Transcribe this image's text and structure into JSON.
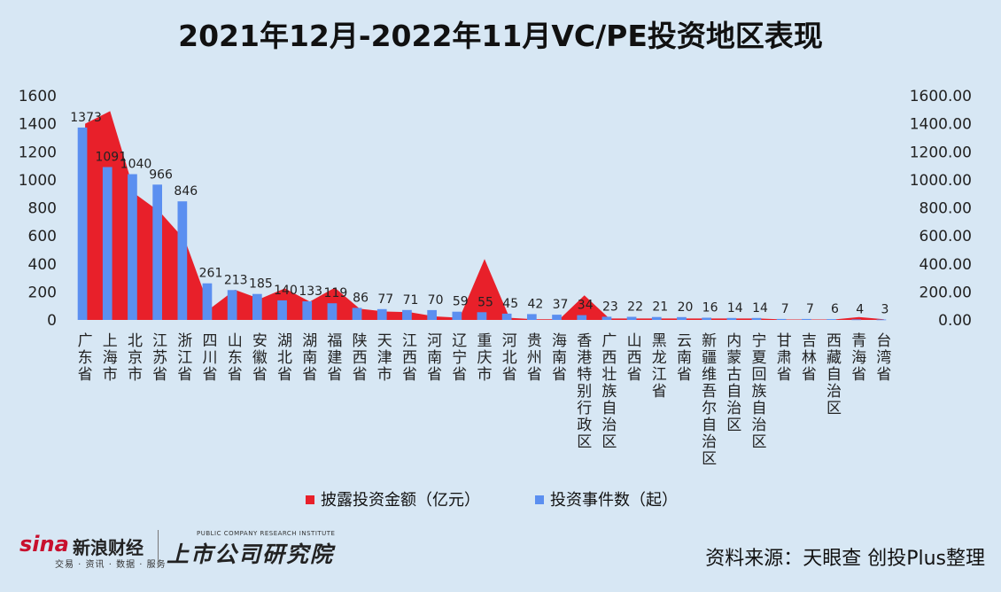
{
  "title": "2021年12月-2022年11月VC/PE投资地区表现",
  "source_note": "资料来源：天眼查 创投Plus整理",
  "logos": {
    "sina_word": "sina",
    "sina_cn": "新浪财经",
    "sina_sub": "交易 · 资讯 · 数据 · 服务",
    "institute_cn": "上市公司研究院",
    "institute_en": "PUBLIC COMPANY RESEARCH INSTITUTE"
  },
  "colors": {
    "area": "#e8202a",
    "bar": "#5b8ff0",
    "background": "#d7e7f4"
  },
  "chart_data": {
    "type": "bar",
    "title": "2021年12月-2022年11月VC/PE投资地区表现",
    "categories": [
      "广东省",
      "上海市",
      "北京市",
      "江苏省",
      "浙江省",
      "四川省",
      "山东省",
      "安徽省",
      "湖北省",
      "湖南省",
      "福建省",
      "陕西省",
      "天津市",
      "江西省",
      "河南省",
      "辽宁省",
      "重庆市",
      "河北省",
      "贵州省",
      "海南省",
      "香港特别行政区",
      "广西壮族自治区",
      "山西省",
      "黑龙江省",
      "云南省",
      "新疆维吾尔自治区",
      "内蒙古自治区",
      "宁夏回族自治区",
      "甘肃省",
      "吉林省",
      "西藏自治区",
      "青海省",
      "台湾省"
    ],
    "series": [
      {
        "name": "披露投资金额（亿元）",
        "type": "area",
        "axis": "left",
        "values": [
          1400,
          1490,
          900,
          770,
          570,
          80,
          215,
          150,
          225,
          130,
          230,
          80,
          60,
          55,
          25,
          15,
          435,
          15,
          5,
          5,
          175,
          10,
          10,
          10,
          10,
          10,
          10,
          10,
          3,
          3,
          3,
          20,
          5
        ]
      },
      {
        "name": "投资事件数（起）",
        "type": "bar",
        "axis": "right",
        "values": [
          1373,
          1091,
          1040,
          966,
          846,
          261,
          213,
          185,
          140,
          133,
          119,
          86,
          77,
          71,
          70,
          59,
          55,
          45,
          42,
          37,
          34,
          23,
          22,
          21,
          20,
          16,
          14,
          14,
          7,
          7,
          6,
          4,
          3
        ]
      }
    ],
    "left_axis": {
      "ylim": [
        0,
        1600
      ],
      "ticks": [
        "0",
        "200",
        "400",
        "600",
        "800",
        "1000",
        "1200",
        "1400",
        "1600"
      ]
    },
    "right_axis": {
      "ylim": [
        0,
        1600
      ],
      "ticks": [
        "0.00",
        "200.00",
        "400.00",
        "600.00",
        "800.00",
        "1000.00",
        "1200.00",
        "1400.00",
        "1600.00"
      ]
    },
    "legend_position": "bottom",
    "grid": false
  }
}
